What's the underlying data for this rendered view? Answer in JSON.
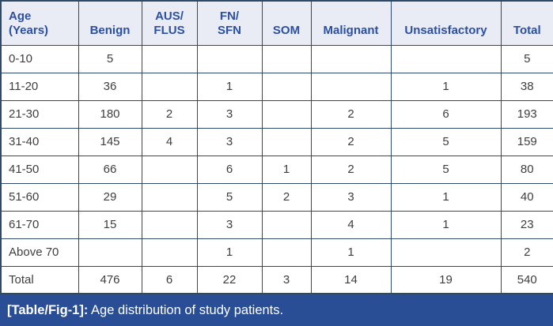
{
  "table": {
    "columns": [
      {
        "label": "Age\n(Years)",
        "align": "left"
      },
      {
        "label": "Benign",
        "align": "center"
      },
      {
        "label": "AUS/\nFLUS",
        "align": "center"
      },
      {
        "label": "FN/\nSFN",
        "align": "center"
      },
      {
        "label": "SOM",
        "align": "center"
      },
      {
        "label": "Malignant",
        "align": "center"
      },
      {
        "label": "Unsatisfactory",
        "align": "center"
      },
      {
        "label": "Total",
        "align": "center"
      }
    ],
    "rows": [
      [
        "0-10",
        "5",
        "",
        "",
        "",
        "",
        "",
        "5"
      ],
      [
        "11-20",
        "36",
        "",
        "1",
        "",
        "",
        "1",
        "38"
      ],
      [
        "21-30",
        "180",
        "2",
        "3",
        "",
        "2",
        "6",
        "193"
      ],
      [
        "31-40",
        "145",
        "4",
        "3",
        "",
        "2",
        "5",
        "159"
      ],
      [
        "41-50",
        "66",
        "",
        "6",
        "1",
        "2",
        "5",
        "80"
      ],
      [
        "51-60",
        "29",
        "",
        "5",
        "2",
        "3",
        "1",
        "40"
      ],
      [
        "61-70",
        "15",
        "",
        "3",
        "",
        "4",
        "1",
        "23"
      ],
      [
        "Above 70",
        "",
        "",
        "1",
        "",
        "1",
        "",
        "2"
      ],
      [
        "Total",
        "476",
        "6",
        "22",
        "3",
        "14",
        "19",
        "540"
      ]
    ]
  },
  "caption": {
    "label": "[Table/Fig-1]:",
    "text": " Age distribution of study patients."
  },
  "colors": {
    "header_bg": "#e9ebf5",
    "header_text": "#2c50a0",
    "border": "#2d4a6b",
    "body_text": "#3e3e3e",
    "caption_bg": "#2a4e96",
    "caption_text": "#ffffff"
  }
}
